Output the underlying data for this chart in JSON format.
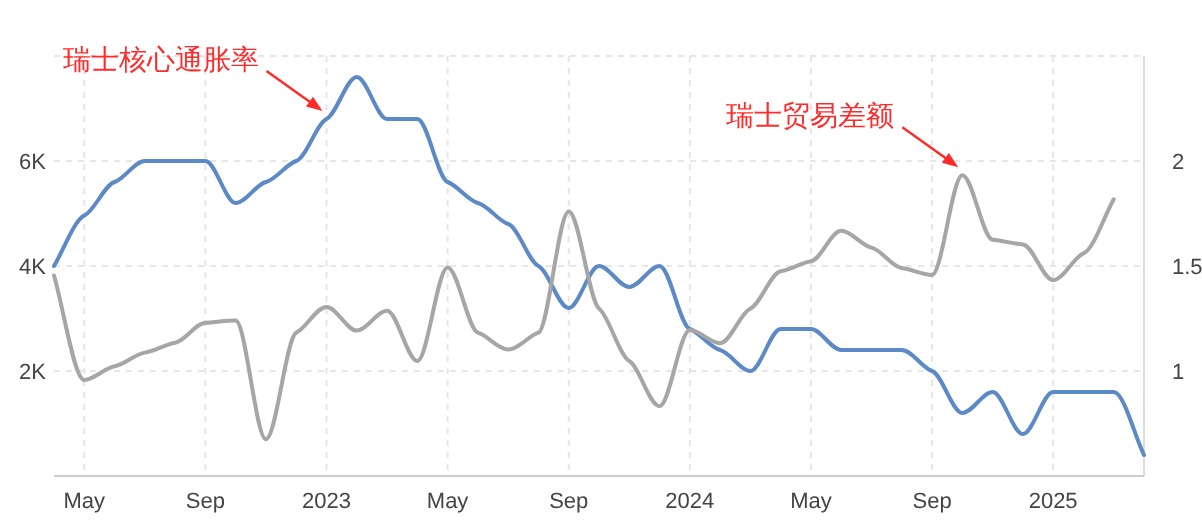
{
  "chart_data": {
    "type": "line",
    "x": [
      "2022-04",
      "2022-05",
      "2022-06",
      "2022-07",
      "2022-08",
      "2022-09",
      "2022-10",
      "2022-11",
      "2022-12",
      "2023-01",
      "2023-02",
      "2023-03",
      "2023-04",
      "2023-05",
      "2023-06",
      "2023-07",
      "2023-08",
      "2023-09",
      "2023-10",
      "2023-11",
      "2023-12",
      "2024-01",
      "2024-02",
      "2024-03",
      "2024-04",
      "2024-05",
      "2024-06",
      "2024-07",
      "2024-08",
      "2024-09",
      "2024-10",
      "2024-11",
      "2024-12",
      "2025-01",
      "2025-02",
      "2025-03",
      "2025-04"
    ],
    "series": [
      {
        "color": "#5b8ac6",
        "axis": "y2",
        "values": [
          1.5,
          1.74,
          1.9,
          2.0,
          2.0,
          2.0,
          1.8,
          1.9,
          2.0,
          2.2,
          2.4,
          2.2,
          2.2,
          1.9,
          1.8,
          1.7,
          1.5,
          1.3,
          1.5,
          1.4,
          1.5,
          1.2,
          1.1,
          1.0,
          1.2,
          1.2,
          1.1,
          1.1,
          1.1,
          1.0,
          0.8,
          0.9,
          0.7,
          0.9,
          0.9,
          0.9,
          0.6
        ]
      },
      {
        "color": "#a6a6a6",
        "values": [
          3820,
          1830,
          2090,
          2350,
          2540,
          2920,
          2960,
          700,
          2730,
          3220,
          2770,
          3150,
          2190,
          3970,
          2730,
          2410,
          2730,
          5040,
          3190,
          2190,
          1330,
          2780,
          2530,
          3190,
          3900,
          4090,
          4670,
          4350,
          3960,
          3830,
          5730,
          4500,
          4410,
          3730,
          4240,
          5270,
          null
        ]
      }
    ],
    "xlim": [
      "2022-04",
      "2025-04"
    ],
    "xticks": [
      {
        "value": "2022-05",
        "label": "May"
      },
      {
        "value": "2022-09",
        "label": "Sep"
      },
      {
        "value": "2023-01",
        "label": "2023"
      },
      {
        "value": "2023-05",
        "label": "May"
      },
      {
        "value": "2023-09",
        "label": "Sep"
      },
      {
        "value": "2024-01",
        "label": "2024"
      },
      {
        "value": "2024-05",
        "label": "May"
      },
      {
        "value": "2024-09",
        "label": "Sep"
      },
      {
        "value": "2025-01",
        "label": "2025"
      }
    ],
    "ylim": [
      0,
      8000
    ],
    "yticks": [
      {
        "value": 2000,
        "label": "2K"
      },
      {
        "value": 4000,
        "label": "4K"
      },
      {
        "value": 6000,
        "label": "6K"
      },
      {
        "value": 8000,
        "label": null
      }
    ],
    "y2lim": [
      0.5,
      2.5
    ],
    "y2ticks": [
      1,
      1.5,
      2
    ],
    "grid": true,
    "annotations": [
      {
        "text": "瑞士核心通胀率",
        "x": "2023-01",
        "y": 6800
      },
      {
        "text": "瑞士贸易差额",
        "x": "2024-10",
        "y": 5730
      }
    ]
  }
}
